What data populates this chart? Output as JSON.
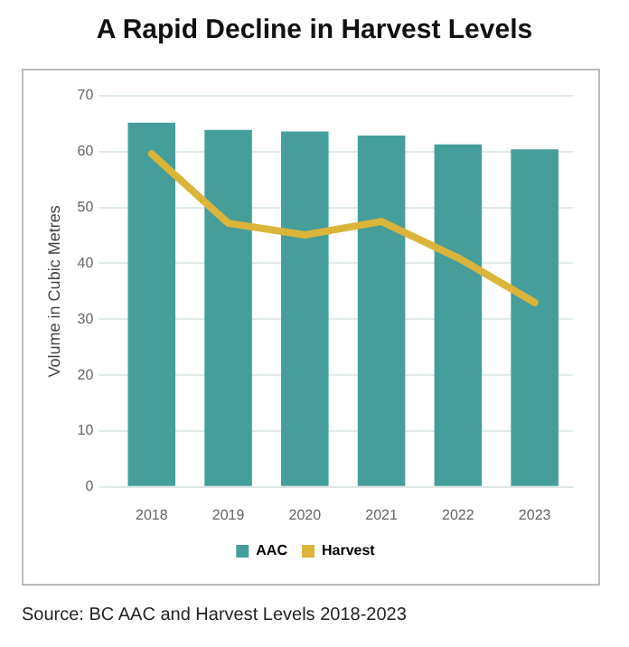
{
  "chart_data": {
    "type": "bar",
    "title": "A Rapid Decline in Harvest Levels",
    "ylabel": "Volume in Cubic Metres",
    "categories": [
      "2018",
      "2019",
      "2020",
      "2021",
      "2022",
      "2023"
    ],
    "series": [
      {
        "name": "AAC",
        "color": "#459e9a",
        "values": [
          65.2,
          63.9,
          63.6,
          62.9,
          61.3,
          60.4
        ]
      },
      {
        "name": "Harvest",
        "type": "line",
        "color": "#dbb43a",
        "values": [
          59.6,
          47.2,
          45.1,
          47.5,
          41.0,
          33.0
        ]
      }
    ],
    "ylim": [
      0,
      70
    ],
    "yticks": [
      0,
      10,
      20,
      30,
      40,
      50,
      60,
      70
    ],
    "grid": "y",
    "legend": "bottom",
    "marker": "none",
    "annotations": [
      "Source: BC AAC and Harvest Levels 2018-2023"
    ]
  }
}
